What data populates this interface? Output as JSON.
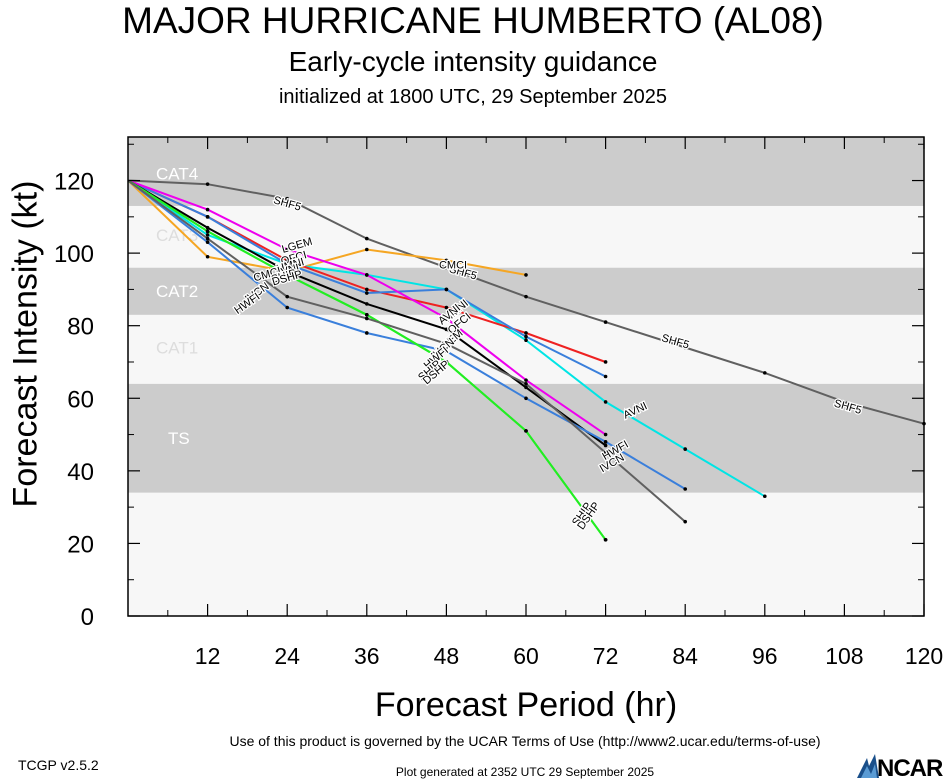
{
  "header": {
    "title": "MAJOR HURRICANE HUMBERTO (AL08)",
    "subtitle": "Early-cycle intensity guidance",
    "init": "initialized at 1800 UTC, 29 September 2025"
  },
  "footer": {
    "terms": "Use of this product is governed by the UCAR Terms of Use (http://www2.ucar.edu/terms-of-use)",
    "version": "TCGP v2.5.2",
    "generated": "Plot generated at 2352 UTC   29 September 2025",
    "logo_text": "NCAR"
  },
  "chart_data": {
    "type": "line",
    "title": "MAJOR HURRICANE HUMBERTO (AL08)",
    "xlabel": "Forecast Period (hr)",
    "ylabel": "Forecast Intensity (kt)",
    "xlim": [
      0,
      120
    ],
    "ylim": [
      0,
      132
    ],
    "xticks": [
      12,
      24,
      36,
      48,
      60,
      72,
      84,
      96,
      108,
      120
    ],
    "yticks": [
      0,
      20,
      40,
      60,
      80,
      100,
      120
    ],
    "bands": [
      {
        "name": "TS",
        "from": 34,
        "to": 64,
        "color": "#cccccc"
      },
      {
        "name": "CAT1",
        "from": 64,
        "to": 83,
        "color": "#f7f7f7"
      },
      {
        "name": "CAT2",
        "from": 83,
        "to": 96,
        "color": "#cccccc"
      },
      {
        "name": "CAT3",
        "from": 96,
        "to": 113,
        "color": "#f7f7f7"
      },
      {
        "name": "CAT4",
        "from": 113,
        "to": 137,
        "color": "#cccccc"
      }
    ],
    "below_band_color": "#f7f7f7",
    "series": [
      {
        "name": "SHF5",
        "color": "#606060",
        "x": [
          0,
          12,
          24,
          36,
          48,
          60,
          72,
          84,
          96,
          108,
          120
        ],
        "y": [
          120,
          119,
          115,
          104,
          96,
          88,
          81,
          74,
          67,
          59,
          53
        ]
      },
      {
        "name": "CMCI",
        "color": "#f5a623",
        "x": [
          0,
          12,
          24,
          36,
          48,
          60
        ],
        "y": [
          120,
          99,
          95,
          101,
          98,
          94
        ]
      },
      {
        "name": "AVNI",
        "color": "#00e5e5",
        "x": [
          0,
          12,
          24,
          36,
          48,
          60,
          72,
          84,
          96
        ],
        "y": [
          120,
          105,
          97,
          94,
          90,
          76,
          59,
          46,
          33
        ]
      },
      {
        "name": "HMNI",
        "color": "#ee2222",
        "x": [
          0,
          12,
          24,
          36,
          48,
          60,
          72
        ],
        "y": [
          120,
          110,
          98,
          90,
          85,
          78,
          70
        ]
      },
      {
        "name": "OFCI",
        "color": "#3a7fdb",
        "x": [
          0,
          12,
          24,
          36,
          48,
          60,
          72
        ],
        "y": [
          120,
          110,
          97,
          89,
          90,
          77,
          66
        ]
      },
      {
        "name": "LGEM",
        "color": "#ee00ee",
        "x": [
          0,
          12,
          24,
          36,
          48,
          60,
          72
        ],
        "y": [
          120,
          112,
          101,
          94,
          82,
          65,
          50
        ]
      },
      {
        "name": "IVCN",
        "color": "#000000",
        "x": [
          0,
          12,
          24,
          36,
          48,
          60,
          72
        ],
        "y": [
          120,
          107,
          95,
          86,
          79,
          63,
          47
        ]
      },
      {
        "name": "HWFI",
        "color": "#3a7fdb",
        "x": [
          0,
          12,
          24,
          36,
          48,
          60,
          72,
          84
        ],
        "y": [
          120,
          103,
          85,
          78,
          73,
          60,
          48,
          35
        ]
      },
      {
        "name": "DSHP",
        "color": "#22ee22",
        "x": [
          0,
          12,
          24,
          36,
          48,
          60,
          72
        ],
        "y": [
          120,
          106,
          94,
          83,
          70,
          51,
          21
        ]
      },
      {
        "name": "SHIP",
        "color": "#22ee22",
        "x": [
          0,
          12,
          24,
          36,
          48,
          60,
          72
        ],
        "y": [
          120,
          106,
          94,
          83,
          70,
          51,
          21
        ]
      },
      {
        "name": "IVCN",
        "color": "#606060",
        "x": [
          0,
          12,
          24,
          36,
          48,
          60,
          72,
          84
        ],
        "y": [
          120,
          104,
          88,
          82,
          75,
          64,
          45,
          26
        ]
      }
    ],
    "labels": [
      {
        "text": "SHF5",
        "x": 24,
        "y": 113.5,
        "rot": 16
      },
      {
        "text": "SHF5",
        "x": 50.5,
        "y": 94.5,
        "rot": 16
      },
      {
        "text": "SHF5",
        "x": 82.5,
        "y": 75.5,
        "rot": 16
      },
      {
        "text": "SHF5",
        "x": 108.5,
        "y": 57.5,
        "rot": 16
      },
      {
        "text": "CMCI",
        "x": 49,
        "y": 96.5,
        "rot": 0
      },
      {
        "text": "LGEM",
        "x": 25.5,
        "y": 102,
        "rot": -16
      },
      {
        "text": "OFCI",
        "x": 25,
        "y": 98.5,
        "rot": -16
      },
      {
        "text": "HMNI",
        "x": 24.5,
        "y": 96.5,
        "rot": -16
      },
      {
        "text": "AVNI",
        "x": 24,
        "y": 95,
        "rot": -16
      },
      {
        "text": "CMCI",
        "x": 21,
        "y": 94,
        "rot": -16
      },
      {
        "text": "SHIP",
        "x": 23.5,
        "y": 93.5,
        "rot": -16
      },
      {
        "text": "DSHP",
        "x": 24,
        "y": 93,
        "rot": -16
      },
      {
        "text": "IVCN",
        "x": 19.5,
        "y": 89,
        "rot": -35
      },
      {
        "text": "HWFI",
        "x": 18,
        "y": 86,
        "rot": -35
      },
      {
        "text": "HMNI",
        "x": 49.5,
        "y": 84,
        "rot": -40
      },
      {
        "text": "AVNI",
        "x": 48.5,
        "y": 83,
        "rot": -40
      },
      {
        "text": "OFCI",
        "x": 50,
        "y": 80.5,
        "rot": -40
      },
      {
        "text": "LGEM",
        "x": 48.5,
        "y": 75.5,
        "rot": -40
      },
      {
        "text": "IVCN",
        "x": 47.5,
        "y": 73.5,
        "rot": -40
      },
      {
        "text": "HWFI",
        "x": 46.5,
        "y": 71,
        "rot": -40
      },
      {
        "text": "SHIP",
        "x": 45.5,
        "y": 67.5,
        "rot": -40
      },
      {
        "text": "DSHP",
        "x": 46.5,
        "y": 67,
        "rot": -40
      },
      {
        "text": "AVNI",
        "x": 76.5,
        "y": 56.5,
        "rot": -25
      },
      {
        "text": "HWFI",
        "x": 73.5,
        "y": 45.5,
        "rot": -30
      },
      {
        "text": "IVCN",
        "x": 73,
        "y": 42,
        "rot": -30
      },
      {
        "text": "SHIP",
        "x": 68.5,
        "y": 28,
        "rot": -55
      },
      {
        "text": "DSHP",
        "x": 69.5,
        "y": 27.5,
        "rot": -55
      }
    ]
  }
}
